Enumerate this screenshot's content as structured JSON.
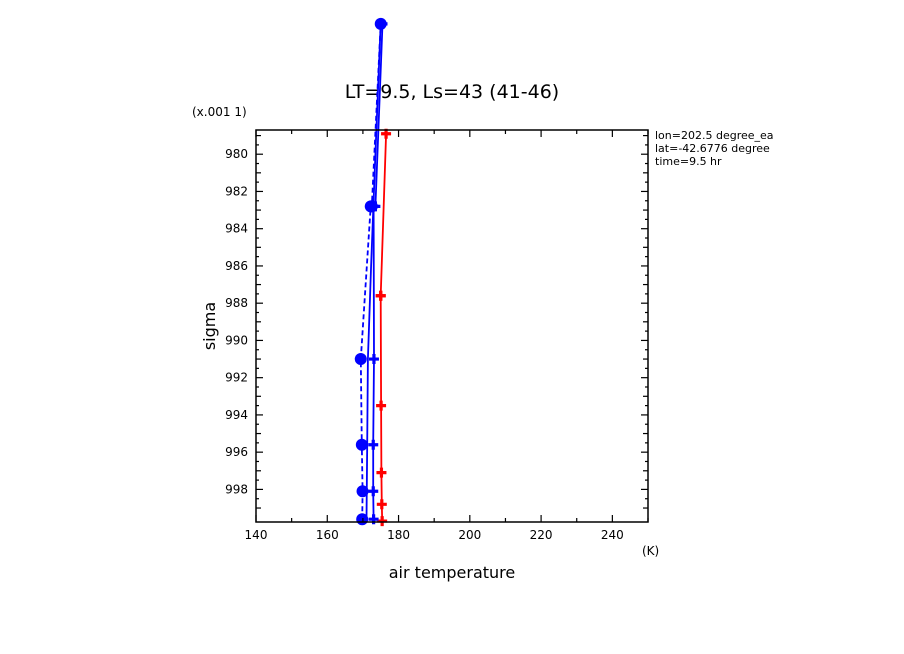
{
  "chart_data": {
    "type": "line",
    "title": "LT=9.5, Ls=43 (41-46)",
    "xlabel": "air temperature",
    "xunit": "(K)",
    "ylabel": "sigma",
    "yunit": "(x.001 1)",
    "xlim": [
      140,
      250
    ],
    "ylim": [
      999.75,
      978.7
    ],
    "y_inverted": true,
    "x_ticks": [
      140,
      160,
      180,
      200,
      220,
      240
    ],
    "y_ticks": [
      980,
      982,
      984,
      986,
      988,
      990,
      992,
      994,
      996,
      998
    ],
    "info_lines": [
      "lon=202.5 degree_ea",
      "lat=-42.6776 degree",
      "time=9.5 hr"
    ],
    "series": [
      {
        "color": "#ff0000",
        "style": "solid",
        "marker": "plus",
        "x": [
          175.4,
          175.3,
          175.2,
          175.1,
          175.0,
          175.0,
          176.5
        ],
        "y": [
          999.7,
          998.8,
          997.1,
          993.5,
          987.6,
          987.6,
          978.9
        ]
      },
      {
        "color": "#0000ff",
        "style": "solid",
        "marker": "plus",
        "x": [
          173.0,
          172.9,
          172.9,
          173.1,
          173.0,
          173.5,
          175.5
        ],
        "y": [
          999.6,
          998.1,
          995.6,
          991.0,
          982.8,
          982.8,
          973.0
        ]
      },
      {
        "color": "#0000ff",
        "style": "dashed",
        "marker": "dot",
        "x": [
          169.8,
          169.9,
          169.7,
          169.4,
          172.2,
          172.5,
          175.0
        ],
        "y": [
          999.6,
          998.1,
          995.6,
          991.0,
          982.8,
          982.8,
          973.0
        ]
      },
      {
        "color": "#0000ff",
        "style": "solid",
        "marker": "none",
        "x": [
          171.0,
          171.2,
          171.4,
          172.3,
          173.5,
          175.0
        ],
        "y": [
          999.6,
          995.6,
          991.0,
          986.0,
          980.0,
          973.0
        ]
      }
    ]
  }
}
